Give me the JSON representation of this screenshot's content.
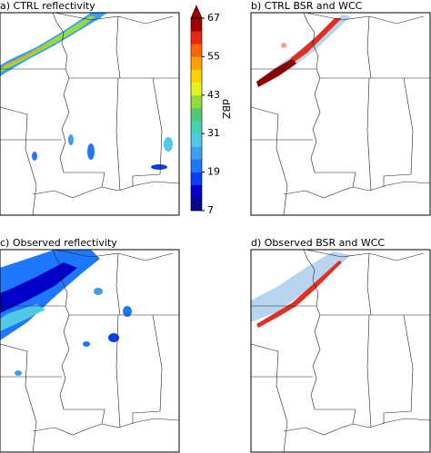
{
  "panels": [
    {
      "title": "a) CTRL reflectivity"
    },
    {
      "title": "b) CTRL BSR and WCC"
    },
    {
      "title": "c) Observed reflectivity"
    },
    {
      "title": "d) Observed BSR and WCC"
    }
  ],
  "colorbar": {
    "label": "dBZ",
    "lim": [
      7,
      67
    ],
    "ticks": [
      7,
      19,
      31,
      43,
      55,
      67
    ],
    "colors": [
      "#08088c",
      "#0000c8",
      "#0a3cf0",
      "#1e78ff",
      "#3ca0f0",
      "#50c8e6",
      "#46d2b4",
      "#50c878",
      "#96dc3c",
      "#e6f01e",
      "#ffd200",
      "#ffa000",
      "#ff6400",
      "#e62814",
      "#a00000"
    ]
  }
}
